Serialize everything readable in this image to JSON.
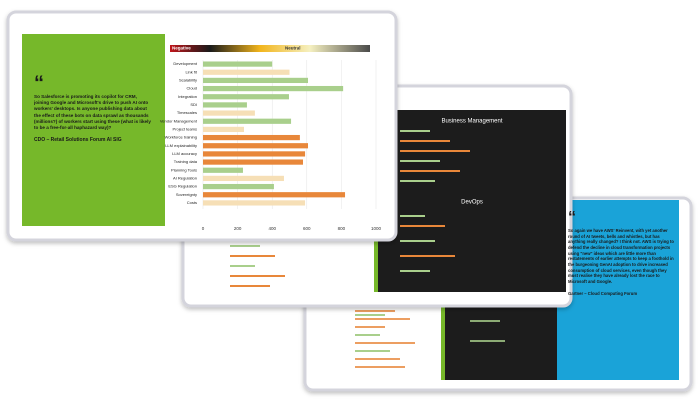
{
  "chart_data": {
    "type": "hbar",
    "legend": [
      "Negative",
      "Neutral"
    ],
    "categories": [
      "Development",
      "Link fit",
      "Scalability",
      "Cloud",
      "Integration",
      "SDI",
      "Timescales",
      "Vendor Management",
      "Project teams",
      "Workforce training",
      "LLM explainability",
      "LLM accuracy",
      "Training data",
      "Planning Tools",
      "AI Regulation",
      "ESG Regulation",
      "Sovereignty",
      "Costs"
    ],
    "values": [
      400,
      500,
      607,
      810,
      497,
      254,
      300,
      509,
      237,
      560,
      607,
      590,
      578,
      231,
      468,
      410,
      821,
      590
    ],
    "colors": [
      "#a9cf8c",
      "#f6dfb6",
      "#a9cf8c",
      "#a9cf8c",
      "#a9cf8c",
      "#a9cf8c",
      "#f6dfb6",
      "#a9cf8c",
      "#f6dfb6",
      "#e8873a",
      "#e8873a",
      "#e8873a",
      "#e8873a",
      "#a9cf8c",
      "#f6dfb6",
      "#a9cf8c",
      "#e8873a",
      "#f6dfb6"
    ],
    "xlim": [
      0,
      1000
    ],
    "xticks": [
      0,
      200,
      400,
      600,
      800,
      1000
    ]
  },
  "front_quote": {
    "mark": "“",
    "text": "So Salesforce is promoting its copilot for CRM, joining Google and Microsoft's drive to push AI onto workers' desktops. Is anyone publishing data about the effect of these bots on data sprawl as thousands (millions?) of workers start using these (what is likely to be a free-for-all haphazard way)?",
    "attribution": "CDO – Retail Solutions Forum AI SIG"
  },
  "back_quote": {
    "mark": "“",
    "text": "So again we have AWS' Reinvent, with yet another round of AI tweets, bells and whistles, but has anything really changed? I think not. AWS is trying to defend the decline in cloud transformation projects using \"new\" ideas which are little more than restatements of earlier attempts to keep a foothold in the burgeoning GenAI adoption to drive increased consumption of cloud services, even though they must realise they have already lost the race to Microsoft and Google.",
    "attribution": "Gartner – Cloud Computing Forum"
  },
  "panels": [
    "Business Management",
    "DevOps"
  ]
}
